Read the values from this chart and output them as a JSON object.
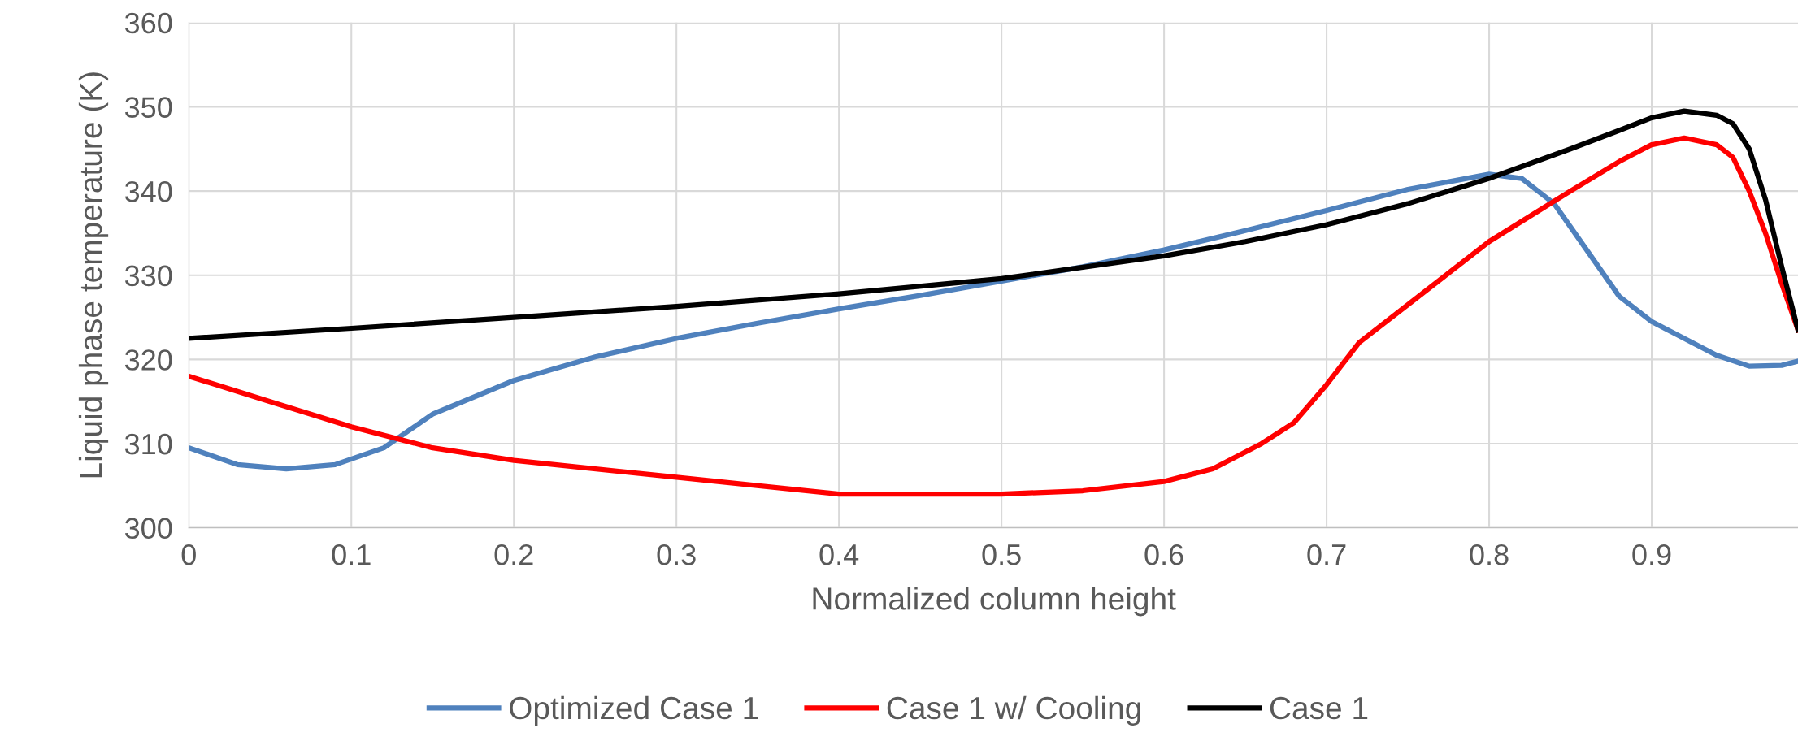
{
  "chart_data": {
    "type": "line",
    "xlabel": "Normalized column height",
    "ylabel": "Liquid phase temperature (K)",
    "xlim": [
      0,
      0.99
    ],
    "xticks": [
      0,
      0.1,
      0.2,
      0.3,
      0.4,
      0.5,
      0.6,
      0.7,
      0.8,
      0.9
    ],
    "ylim": [
      300,
      360
    ],
    "yticks": [
      300,
      310,
      320,
      330,
      340,
      350,
      360
    ],
    "grid": true,
    "legend": "bottom",
    "marker": "none",
    "line_style": "solid",
    "series": [
      {
        "name": "Optimized Case 1",
        "color": "#4f81bd",
        "x": [
          0,
          0.03,
          0.06,
          0.09,
          0.12,
          0.15,
          0.2,
          0.25,
          0.3,
          0.35,
          0.4,
          0.45,
          0.5,
          0.55,
          0.6,
          0.65,
          0.7,
          0.75,
          0.8,
          0.82,
          0.84,
          0.86,
          0.88,
          0.9,
          0.92,
          0.94,
          0.96,
          0.98,
          0.99
        ],
        "values": [
          309.5,
          307.5,
          307,
          307.5,
          309.5,
          313.5,
          317.5,
          320.3,
          322.5,
          324.3,
          326,
          327.6,
          329.3,
          331,
          333,
          335.3,
          337.7,
          340.2,
          342,
          341.5,
          338.5,
          333,
          327.5,
          324.5,
          322.5,
          320.5,
          319.2,
          319.3,
          319.8
        ]
      },
      {
        "name": "Case 1 w/ Cooling",
        "color": "#ff0000",
        "x": [
          0,
          0.05,
          0.1,
          0.15,
          0.2,
          0.3,
          0.4,
          0.5,
          0.55,
          0.6,
          0.63,
          0.66,
          0.68,
          0.7,
          0.72,
          0.75,
          0.8,
          0.85,
          0.88,
          0.9,
          0.92,
          0.94,
          0.95,
          0.96,
          0.97,
          0.98,
          0.99
        ],
        "values": [
          318,
          315,
          312,
          309.5,
          308,
          306,
          304,
          304,
          304.4,
          305.5,
          307,
          310,
          312.5,
          317,
          322,
          326.5,
          334,
          340,
          343.5,
          345.5,
          346.3,
          345.5,
          344,
          340,
          335,
          329,
          323.5
        ]
      },
      {
        "name": "Case 1",
        "color": "#000000",
        "x": [
          0,
          0.1,
          0.2,
          0.3,
          0.4,
          0.5,
          0.6,
          0.65,
          0.7,
          0.75,
          0.8,
          0.85,
          0.88,
          0.9,
          0.92,
          0.94,
          0.95,
          0.96,
          0.97,
          0.98,
          0.99
        ],
        "values": [
          322.5,
          323.7,
          325,
          326.3,
          327.8,
          329.6,
          332.3,
          334,
          336,
          338.5,
          341.5,
          345,
          347.2,
          348.7,
          349.5,
          349,
          348,
          345,
          339,
          331,
          323.5
        ]
      }
    ]
  }
}
